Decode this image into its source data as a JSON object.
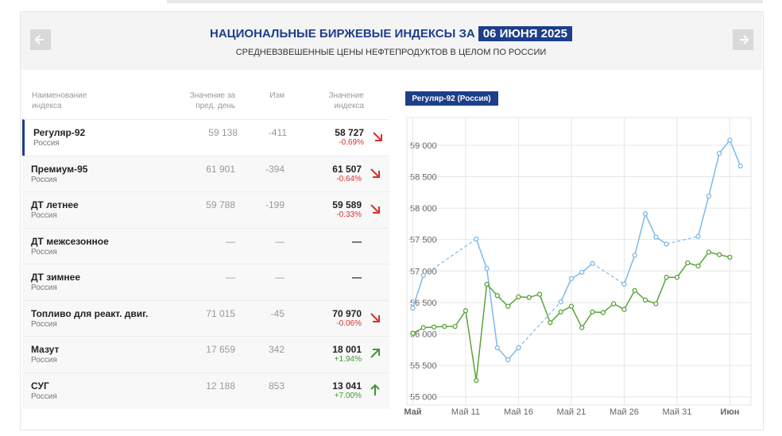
{
  "header": {
    "title": "НАЦИОНАЛЬНЫЕ БИРЖЕВЫЕ ИНДЕКСЫ ЗА",
    "date": "06 ИЮНЯ 2025",
    "subtitle": "СРЕДНЕВЗВЕШЕННЫЕ ЦЕНЫ НЕФТЕПРОДУКТОВ В ЦЕЛОМ ПО РОССИИ"
  },
  "table": {
    "columns": [
      "Наименование индекса",
      "Значение за пред. день",
      "Изм",
      "Значение индекса"
    ],
    "rows": [
      {
        "name": "Регуляр-92",
        "region": "Россия",
        "prev": "59 138",
        "change": "-411",
        "value": "58 727",
        "pct": "-0.69%",
        "trend": "down-right",
        "selected": true
      },
      {
        "name": "Премиум-95",
        "region": "Россия",
        "prev": "61 901",
        "change": "-394",
        "value": "61 507",
        "pct": "-0.64%",
        "trend": "down-right"
      },
      {
        "name": "ДТ летнее",
        "region": "Россия",
        "prev": "59 788",
        "change": "-199",
        "value": "59 589",
        "pct": "-0.33%",
        "trend": "down-right"
      },
      {
        "name": "ДТ межсезонное",
        "region": "Россия",
        "prev": "—",
        "change": "—",
        "value": "—"
      },
      {
        "name": "ДТ зимнее",
        "region": "Россия",
        "prev": "—",
        "change": "—",
        "value": "—"
      },
      {
        "name": "Топливо для реакт. двиг.",
        "region": "Россия",
        "prev": "71 015",
        "change": "-45",
        "value": "70 970",
        "pct": "-0.06%",
        "trend": "down-right"
      },
      {
        "name": "Мазут",
        "region": "Россия",
        "prev": "17 659",
        "change": "342",
        "value": "18 001",
        "pct": "+1.94%",
        "trend": "up-right"
      },
      {
        "name": "СУГ",
        "region": "Россия",
        "prev": "12 188",
        "change": "853",
        "value": "13 041",
        "pct": "+7.00%",
        "trend": "up"
      }
    ]
  },
  "chart_data": {
    "type": "line",
    "title": "Регуляр-92 (Россия)",
    "grid": true,
    "xlim": [
      5.44,
      38
    ],
    "ylim": [
      54870,
      59440
    ],
    "xticks": [
      {
        "value": 6,
        "label": "Май"
      },
      {
        "value": 11,
        "label": "Май 11"
      },
      {
        "value": 16,
        "label": "Май 16"
      },
      {
        "value": 21,
        "label": "Май 21"
      },
      {
        "value": 26,
        "label": "Май 26"
      },
      {
        "value": 31,
        "label": "Май 31"
      },
      {
        "value": 36,
        "label": "Июн"
      }
    ],
    "yticks": [
      {
        "value": 55000,
        "label": "55 000"
      },
      {
        "value": 55500,
        "label": "55 500"
      },
      {
        "value": 56000,
        "label": "56 000"
      },
      {
        "value": 56500,
        "label": "56 500"
      },
      {
        "value": 57000,
        "label": "57 000"
      },
      {
        "value": 57500,
        "label": "57 500"
      },
      {
        "value": 58000,
        "label": "58 000"
      },
      {
        "value": 58500,
        "label": "58 500"
      },
      {
        "value": 59000,
        "label": "59 000"
      }
    ],
    "series": [
      {
        "color": "#7cb9e8",
        "x": [
          6,
          7,
          12,
          13,
          14,
          15,
          16,
          20,
          21,
          22,
          23,
          26,
          27,
          28,
          29,
          30,
          33,
          34,
          35,
          36,
          37
        ],
        "values": [
          56410,
          56930,
          57510,
          57040,
          55780,
          55590,
          55780,
          56510,
          56880,
          56980,
          57120,
          56790,
          57250,
          57910,
          57540,
          57430,
          57550,
          58190,
          58870,
          59080,
          58670
        ]
      },
      {
        "color": "#5aa33c",
        "x": [
          6,
          7,
          8,
          9,
          10,
          11,
          12,
          13,
          14,
          15,
          16,
          17,
          18,
          19,
          20,
          21,
          22,
          23,
          24,
          25,
          26,
          27,
          28,
          29,
          30,
          31,
          32,
          33,
          34,
          35,
          36
        ],
        "values": [
          56010,
          56100,
          56110,
          56120,
          56120,
          56370,
          55260,
          56790,
          56610,
          56440,
          56590,
          56580,
          56630,
          56180,
          56350,
          56440,
          56100,
          56350,
          56340,
          56480,
          56390,
          56690,
          56540,
          56480,
          56900,
          56900,
          57130,
          57080,
          57300,
          57260,
          57220
        ]
      }
    ]
  }
}
